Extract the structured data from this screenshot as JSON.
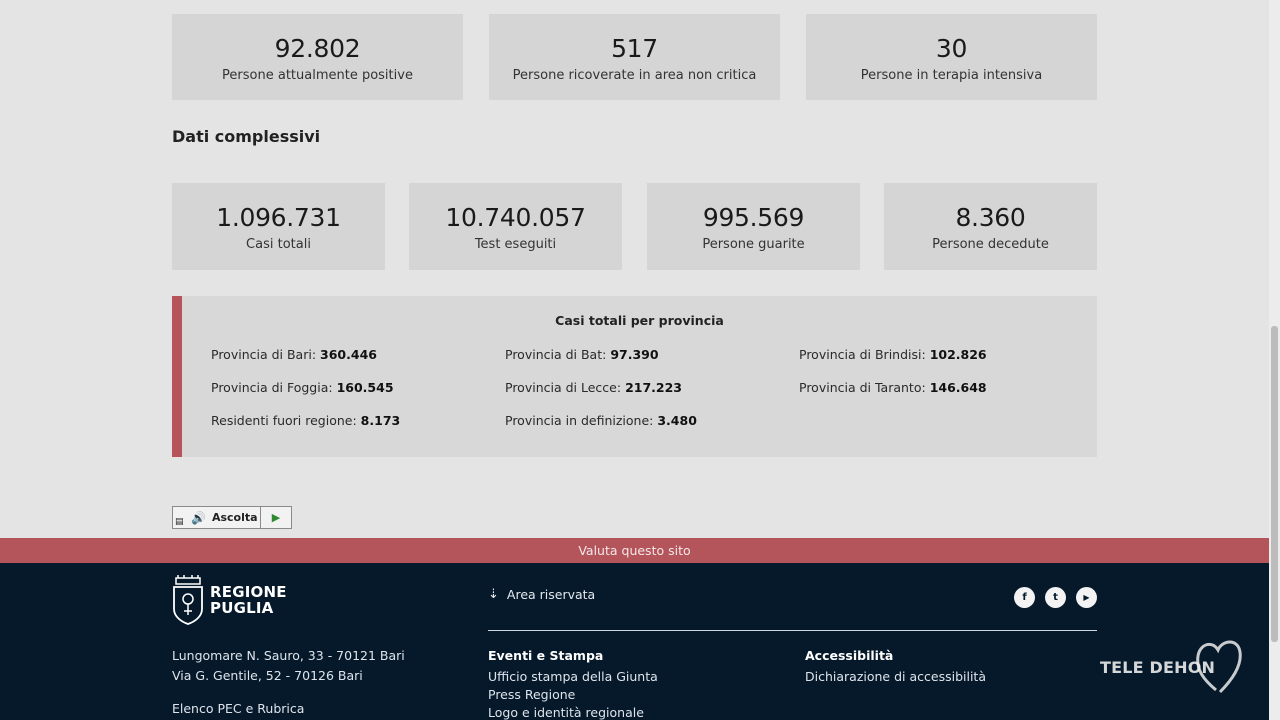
{
  "top_stats": [
    {
      "value": "92.802",
      "label": "Persone attualmente positive"
    },
    {
      "value": "517",
      "label": "Persone ricoverate in area non critica"
    },
    {
      "value": "30",
      "label": "Persone in terapia intensiva"
    }
  ],
  "section_title": "Dati complessivi",
  "overall_stats": [
    {
      "value": "1.096.731",
      "label": "Casi totali"
    },
    {
      "value": "10.740.057",
      "label": "Test eseguiti"
    },
    {
      "value": "995.569",
      "label": "Persone guarite"
    },
    {
      "value": "8.360",
      "label": "Persone decedute"
    }
  ],
  "provinces": {
    "title": "Casi totali per provincia",
    "items": [
      {
        "label": "Provincia di Bari:",
        "value": "360.446"
      },
      {
        "label": "Provincia di Bat:",
        "value": "97.390"
      },
      {
        "label": "Provincia di Brindisi:",
        "value": "102.826"
      },
      {
        "label": "Provincia di Foggia:",
        "value": "160.545"
      },
      {
        "label": "Provincia di Lecce:",
        "value": "217.223"
      },
      {
        "label": "Provincia di Taranto:",
        "value": "146.648"
      },
      {
        "label": "Residenti fuori regione:",
        "value": "8.173"
      },
      {
        "label": "Provincia in definizione:",
        "value": "3.480"
      }
    ],
    "accent_color": "#b7535b"
  },
  "listen_button": {
    "label": "Ascolta",
    "icon": "speaker-icon",
    "play_icon": "play-icon"
  },
  "rate_site": "Valuta questo sito",
  "footer": {
    "logo_line1": "REGIONE",
    "logo_line2": "PUGLIA",
    "address_1": "Lungomare N. Sauro, 33 - 70121 Bari",
    "address_2": "Via G. Gentile, 52 - 70126 Bari",
    "pec_link": "Elenco PEC e Rubrica",
    "area_riservata": "Area riservata",
    "events_heading": "Eventi e Stampa",
    "events_links": [
      "Ufficio stampa della Giunta",
      "Press Regione",
      "Logo e identità regionale"
    ],
    "access_heading": "Accessibilità",
    "access_links": [
      "Dichiarazione di accessibilità"
    ],
    "social": [
      {
        "icon": "facebook-icon",
        "glyph": "f"
      },
      {
        "icon": "twitter-icon",
        "glyph": "t"
      },
      {
        "icon": "youtube-icon",
        "glyph": "▶"
      }
    ],
    "background": "#05192b"
  },
  "watermark": "TELE DEHON"
}
